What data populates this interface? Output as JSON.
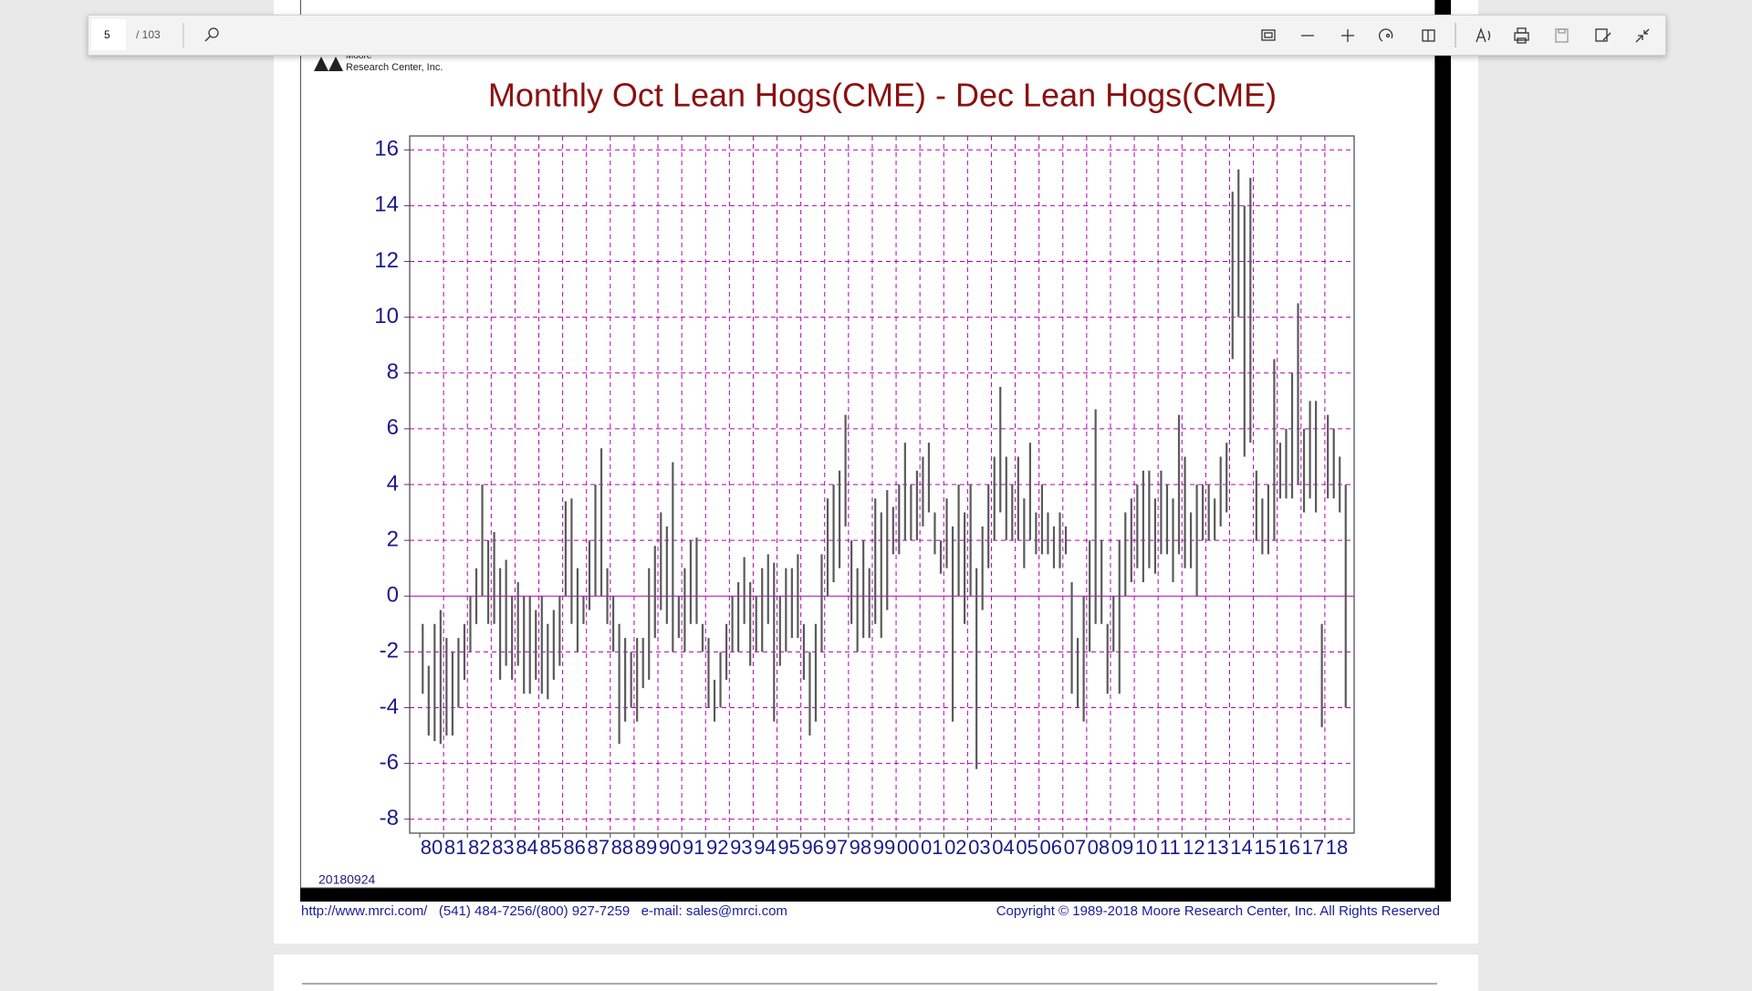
{
  "toolbar": {
    "page": "5",
    "page_count": "/ 103"
  },
  "logo": {
    "line1": "Moore",
    "line2": "Research Center, Inc."
  },
  "date_stamp": "20180924",
  "footer": {
    "contact": "http://www.mrci.com/   (541) 484-7256/(800) 927-7259   e-mail: sales@mrci.com",
    "copyright": "Copyright © 1989-2018 Moore Research Center, Inc. All Rights Reserved"
  },
  "chart_data": {
    "type": "range-bar",
    "title": "Monthly Oct Lean Hogs(CME) - Dec Lean Hogs(CME)",
    "categories": [
      "80",
      "81",
      "82",
      "83",
      "84",
      "85",
      "86",
      "87",
      "88",
      "89",
      "90",
      "91",
      "92",
      "93",
      "94",
      "95",
      "96",
      "97",
      "98",
      "99",
      "00",
      "01",
      "02",
      "03",
      "04",
      "05",
      "06",
      "07",
      "08",
      "09",
      "10",
      "11",
      "12",
      "13",
      "14",
      "15",
      "16",
      "17",
      "18"
    ],
    "highs": [
      [
        -1,
        -2.5,
        -1,
        -0.5
      ],
      [
        -1.5,
        -2,
        -1.5,
        -1
      ],
      [
        0,
        1,
        4,
        2
      ],
      [
        2.3,
        1,
        1.3,
        0
      ],
      [
        0.5,
        0,
        0,
        -0.5
      ],
      [
        0,
        -1,
        -0.5,
        0
      ],
      [
        3.4,
        3.5,
        1,
        0
      ],
      [
        2,
        4,
        5.3,
        1
      ],
      [
        0,
        -1,
        -1.5,
        -2
      ],
      [
        -1.5,
        -1.5,
        1,
        1.8
      ],
      [
        3,
        2.5,
        4.8,
        0
      ],
      [
        1,
        2,
        2.1,
        -1
      ],
      [
        -1.5,
        -3,
        -2,
        -1
      ],
      [
        0,
        0.5,
        1.4,
        0.5
      ],
      [
        0,
        1,
        1.5,
        1.2
      ],
      [
        0,
        1,
        1,
        1.5
      ],
      [
        -1,
        -2,
        -1,
        1.5
      ],
      [
        3.5,
        4,
        4.5,
        6.5
      ],
      [
        2,
        1,
        2,
        1
      ],
      [
        3.5,
        3,
        3.8,
        3.2
      ],
      [
        4,
        5.5,
        4,
        4.5
      ],
      [
        5,
        5.5,
        3,
        2
      ],
      [
        3.5,
        2.5,
        4,
        3
      ],
      [
        4,
        1,
        2.5,
        4
      ],
      [
        5,
        7.5,
        5,
        4
      ],
      [
        5,
        3.5,
        5.5,
        3
      ],
      [
        4,
        3,
        2.5,
        3
      ],
      [
        2.5,
        0.5,
        -1.5,
        0
      ],
      [
        2,
        6.7,
        2,
        -1
      ],
      [
        0,
        2,
        3,
        3.5
      ],
      [
        4,
        4.5,
        4.5,
        3.5
      ],
      [
        4.5,
        4,
        3.5,
        6.5
      ],
      [
        5,
        3,
        4,
        4
      ],
      [
        4,
        3.5,
        5,
        5.5
      ],
      [
        14.5,
        15.3,
        14,
        15
      ],
      [
        4.5,
        3.5,
        4,
        8.5
      ],
      [
        5.5,
        6,
        8,
        10.5
      ],
      [
        6,
        7,
        7,
        -1
      ],
      [
        6.5,
        6,
        5,
        4
      ]
    ],
    "lows": [
      [
        -3.5,
        -5,
        -5.2,
        -5.3
      ],
      [
        -5,
        -5,
        -4,
        -3
      ],
      [
        -2,
        -1,
        0,
        -1
      ],
      [
        -1,
        -3,
        -2.5,
        -3
      ],
      [
        -2.5,
        -3.5,
        -3.5,
        -3
      ],
      [
        -3.5,
        -3.7,
        -3,
        -2.5
      ],
      [
        0,
        -1,
        -2,
        -1
      ],
      [
        -0.5,
        0,
        0,
        -1
      ],
      [
        -2,
        -5.3,
        -4.5,
        -4
      ],
      [
        -4.5,
        -3.3,
        -3,
        -1.5
      ],
      [
        -0.5,
        -1,
        -2,
        -1.5
      ],
      [
        -2,
        -1,
        -1,
        -2
      ],
      [
        -4,
        -4.5,
        -4,
        -3
      ],
      [
        -2,
        -2,
        -1,
        -2.5
      ],
      [
        -2,
        -2,
        -1,
        -4.5
      ],
      [
        -2.5,
        -2,
        -1.5,
        -1.5
      ],
      [
        -3,
        -5,
        -4.5,
        -2
      ],
      [
        0,
        0.5,
        1,
        2.5
      ],
      [
        -1,
        -2,
        -1.5,
        -1.5
      ],
      [
        -1,
        -1.5,
        -0.5,
        1.5
      ],
      [
        1.5,
        2,
        2,
        2
      ],
      [
        2.5,
        3,
        1.5,
        0.8
      ],
      [
        1,
        -4.5,
        0,
        -1
      ],
      [
        0,
        -6.2,
        -0.5,
        1
      ],
      [
        2,
        3,
        2,
        2
      ],
      [
        2,
        1,
        2,
        1.5
      ],
      [
        1.5,
        1.5,
        1,
        1
      ],
      [
        1.5,
        -3.5,
        -4,
        -4.5
      ],
      [
        -2,
        -1,
        -1,
        -3.5
      ],
      [
        -2,
        -3.5,
        0,
        0.5
      ],
      [
        1,
        0.5,
        1,
        0.8
      ],
      [
        1.5,
        1.5,
        0.5,
        1.5
      ],
      [
        1,
        1,
        0,
        2
      ],
      [
        2,
        2,
        2.5,
        3
      ],
      [
        8.5,
        10,
        5,
        5.5
      ],
      [
        2,
        1.5,
        1.5,
        2
      ],
      [
        3.5,
        3.5,
        3.5,
        4
      ],
      [
        3,
        3.5,
        3,
        -4.7
      ],
      [
        3.5,
        3.5,
        3,
        -4
      ]
    ],
    "bar_color": "#5a5a5a",
    "grid_color": "#b400b4",
    "ylim": [
      -8.5,
      16.5
    ],
    "yticks": [
      -8,
      -6,
      -4,
      -2,
      0,
      2,
      4,
      6,
      8,
      10,
      12,
      14,
      16
    ],
    "grid": true
  }
}
